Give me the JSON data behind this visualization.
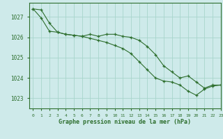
{
  "title": "Graphe pression niveau de la mer (hPa)",
  "background_color": "#ceeaea",
  "grid_color": "#a8d5cc",
  "line_color": "#2d6e2d",
  "xlim": [
    -0.5,
    23
  ],
  "ylim": [
    1022.5,
    1027.7
  ],
  "yticks": [
    1023,
    1024,
    1025,
    1026,
    1027
  ],
  "xticks": [
    0,
    1,
    2,
    3,
    4,
    5,
    6,
    7,
    8,
    9,
    10,
    11,
    12,
    13,
    14,
    15,
    16,
    17,
    18,
    19,
    20,
    21,
    22,
    23
  ],
  "series1_x": [
    0,
    1,
    2,
    3,
    4,
    5,
    6,
    7,
    8,
    9,
    10,
    11,
    12,
    13,
    14,
    15,
    16,
    17,
    18,
    19,
    20,
    21,
    22,
    23
  ],
  "series1_y": [
    1027.4,
    1027.35,
    1026.7,
    1026.25,
    1026.15,
    1026.1,
    1026.05,
    1026.15,
    1026.05,
    1026.15,
    1026.15,
    1026.05,
    1026.0,
    1025.85,
    1025.55,
    1025.15,
    1024.6,
    1024.3,
    1024.0,
    1024.1,
    1023.8,
    1023.5,
    1023.65,
    1023.65
  ],
  "series2_x": [
    0,
    1,
    2,
    3,
    4,
    5,
    6,
    7,
    8,
    9,
    10,
    11,
    12,
    13,
    14,
    15,
    16,
    17,
    18,
    19,
    20,
    21,
    22,
    23
  ],
  "series2_y": [
    1027.4,
    1026.95,
    1026.3,
    1026.25,
    1026.15,
    1026.1,
    1026.05,
    1025.95,
    1025.85,
    1025.75,
    1025.6,
    1025.45,
    1025.2,
    1024.8,
    1024.4,
    1024.0,
    1023.85,
    1023.8,
    1023.65,
    1023.35,
    1023.15,
    1023.45,
    1023.6,
    1023.65
  ]
}
